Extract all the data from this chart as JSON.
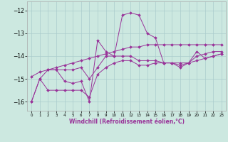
{
  "xlabel": "Windchill (Refroidissement éolien,°C)",
  "background_color": "#cce8e0",
  "line_color": "#993399",
  "xlim": [
    -0.5,
    23.5
  ],
  "ylim": [
    -16.4,
    -11.6
  ],
  "yticks": [
    -16,
    -15,
    -14,
    -13,
    -12
  ],
  "xticks": [
    0,
    1,
    2,
    3,
    4,
    5,
    6,
    7,
    8,
    9,
    10,
    11,
    12,
    13,
    14,
    15,
    16,
    17,
    18,
    19,
    20,
    21,
    22,
    23
  ],
  "series": [
    [
      -16.0,
      -15.0,
      -15.5,
      -15.5,
      -15.5,
      -15.5,
      -15.5,
      -15.8,
      -14.8,
      -14.5,
      -14.3,
      -14.2,
      -14.2,
      -14.4,
      -14.4,
      -14.3,
      -14.3,
      -14.3,
      -14.4,
      -14.3,
      -14.0,
      -13.9,
      -13.8,
      -13.8
    ],
    [
      -16.0,
      -15.0,
      -14.6,
      -14.6,
      -15.1,
      -15.2,
      -15.1,
      -16.0,
      -13.3,
      -13.8,
      -14.0,
      -12.2,
      -12.1,
      -12.2,
      -13.0,
      -13.2,
      -14.3,
      -14.3,
      -14.5,
      -14.3,
      -13.8,
      -14.1,
      -14.0,
      -13.9
    ],
    [
      null,
      null,
      -14.6,
      -14.6,
      -14.6,
      -14.6,
      -14.5,
      -15.0,
      -14.5,
      -14.0,
      -14.0,
      -14.0,
      -14.0,
      -14.2,
      -14.2,
      -14.2,
      -14.3,
      -14.3,
      -14.3,
      -14.3,
      -14.2,
      -14.1,
      -14.0,
      -13.9
    ],
    [
      -14.9,
      -14.7,
      -14.6,
      -14.5,
      -14.4,
      -14.3,
      -14.2,
      -14.1,
      -14.0,
      -13.9,
      -13.8,
      -13.7,
      -13.6,
      -13.6,
      -13.5,
      -13.5,
      -13.5,
      -13.5,
      -13.5,
      -13.5,
      -13.5,
      -13.5,
      -13.5,
      -13.5
    ]
  ]
}
